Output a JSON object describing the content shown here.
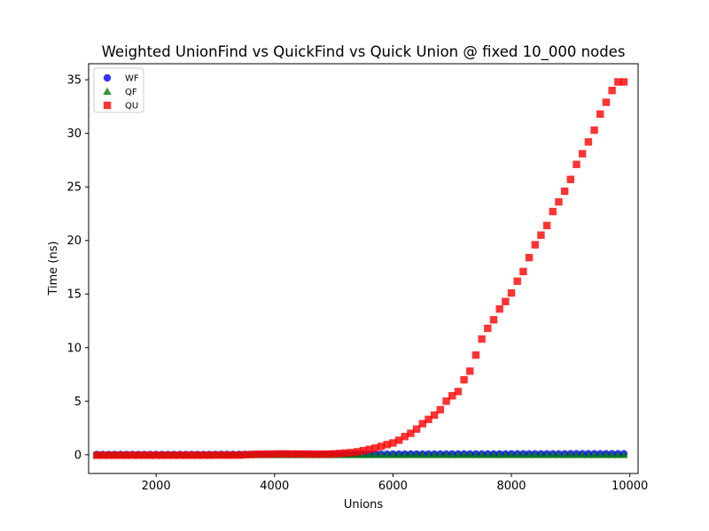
{
  "chart_data": {
    "type": "scatter",
    "title": "Weighted UnionFind vs QuickFind vs Quick Union @ fixed 10_000 nodes",
    "xlabel": "Unions",
    "ylabel": "Time (ns)",
    "xlim": [
      860,
      10140
    ],
    "ylim": [
      -1.75,
      36.5
    ],
    "xticks": [
      2000,
      4000,
      6000,
      8000,
      10000
    ],
    "yticks": [
      0,
      5,
      10,
      15,
      20,
      25,
      30,
      35
    ],
    "legend_position": "top-left",
    "grid": false,
    "series": [
      {
        "name": "WF",
        "marker": "circle",
        "color": "#0000ff",
        "x": [
          1000,
          1100,
          1200,
          1300,
          1400,
          1500,
          1600,
          1700,
          1800,
          1900,
          2000,
          2100,
          2200,
          2300,
          2400,
          2500,
          2600,
          2700,
          2800,
          2900,
          3000,
          3100,
          3200,
          3300,
          3400,
          3500,
          3600,
          3700,
          3800,
          3900,
          4000,
          4100,
          4200,
          4300,
          4400,
          4500,
          4600,
          4700,
          4800,
          4900,
          5000,
          5100,
          5200,
          5300,
          5400,
          5500,
          5600,
          5700,
          5800,
          5900,
          6000,
          6100,
          6200,
          6300,
          6400,
          6500,
          6600,
          6700,
          6800,
          6900,
          7000,
          7100,
          7200,
          7300,
          7400,
          7500,
          7600,
          7700,
          7800,
          7900,
          8000,
          8100,
          8200,
          8300,
          8400,
          8500,
          8600,
          8700,
          8800,
          8900,
          9000,
          9100,
          9200,
          9300,
          9400,
          9500,
          9600,
          9700,
          9800,
          9900
        ],
        "y": [
          0.02,
          0.02,
          0.02,
          0.02,
          0.02,
          0.02,
          0.02,
          0.02,
          0.02,
          0.02,
          0.02,
          0.02,
          0.02,
          0.02,
          0.02,
          0.02,
          0.02,
          0.02,
          0.02,
          0.02,
          0.03,
          0.03,
          0.03,
          0.03,
          0.03,
          0.03,
          0.03,
          0.03,
          0.03,
          0.03,
          0.04,
          0.04,
          0.04,
          0.04,
          0.04,
          0.04,
          0.04,
          0.04,
          0.04,
          0.04,
          0.05,
          0.05,
          0.05,
          0.05,
          0.05,
          0.05,
          0.05,
          0.05,
          0.05,
          0.05,
          0.06,
          0.06,
          0.06,
          0.06,
          0.06,
          0.06,
          0.06,
          0.06,
          0.06,
          0.06,
          0.07,
          0.07,
          0.07,
          0.07,
          0.07,
          0.07,
          0.07,
          0.07,
          0.07,
          0.07,
          0.08,
          0.08,
          0.08,
          0.08,
          0.08,
          0.08,
          0.08,
          0.08,
          0.08,
          0.08,
          0.09,
          0.09,
          0.09,
          0.09,
          0.09,
          0.09,
          0.09,
          0.09,
          0.09,
          0.09
        ]
      },
      {
        "name": "QF",
        "marker": "triangle",
        "color": "#008000",
        "x": [
          1000,
          1100,
          1200,
          1300,
          1400,
          1500,
          1600,
          1700,
          1800,
          1900,
          2000,
          2100,
          2200,
          2300,
          2400,
          2500,
          2600,
          2700,
          2800,
          2900,
          3000,
          3100,
          3200,
          3300,
          3400,
          3500,
          3600,
          3700,
          3800,
          3900,
          4000,
          4100,
          4200,
          4300,
          4400,
          4500,
          4600,
          4700,
          4800,
          4900,
          5000,
          5100,
          5200,
          5300,
          5400,
          5500,
          5600,
          5700,
          5800,
          5900,
          6000,
          6100,
          6200,
          6300,
          6400,
          6500,
          6600,
          6700,
          6800,
          6900,
          7000,
          7100,
          7200,
          7300,
          7400,
          7500,
          7600,
          7700,
          7800,
          7900,
          8000,
          8100,
          8200,
          8300,
          8400,
          8500,
          8600,
          8700,
          8800,
          8900,
          9000,
          9100,
          9200,
          9300,
          9400,
          9500,
          9600,
          9700,
          9800,
          9900
        ],
        "y": [
          -0.02,
          -0.02,
          -0.02,
          -0.02,
          -0.02,
          -0.02,
          -0.02,
          -0.02,
          -0.02,
          -0.02,
          -0.02,
          -0.02,
          -0.02,
          -0.02,
          -0.02,
          -0.02,
          -0.02,
          -0.02,
          -0.02,
          -0.02,
          -0.02,
          -0.02,
          -0.02,
          -0.02,
          -0.02,
          -0.02,
          -0.02,
          -0.02,
          -0.02,
          -0.02,
          -0.02,
          -0.02,
          -0.02,
          -0.02,
          -0.02,
          -0.02,
          -0.02,
          -0.02,
          -0.02,
          -0.02,
          -0.02,
          -0.02,
          -0.02,
          -0.02,
          -0.02,
          -0.02,
          -0.02,
          -0.02,
          -0.02,
          -0.02,
          -0.02,
          -0.02,
          -0.02,
          -0.02,
          -0.02,
          -0.02,
          -0.02,
          -0.02,
          -0.02,
          -0.02,
          -0.02,
          -0.02,
          -0.02,
          -0.02,
          -0.02,
          -0.02,
          -0.02,
          -0.02,
          -0.02,
          -0.02,
          -0.02,
          -0.02,
          -0.02,
          -0.02,
          -0.02,
          -0.02,
          -0.02,
          -0.02,
          -0.02,
          -0.02,
          -0.02,
          -0.02,
          -0.02,
          -0.02,
          -0.02,
          -0.02,
          -0.02,
          -0.02,
          -0.02,
          -0.02
        ]
      },
      {
        "name": "QU",
        "marker": "square",
        "color": "#ff0000",
        "x": [
          1000,
          1100,
          1200,
          1300,
          1400,
          1500,
          1600,
          1700,
          1800,
          1900,
          2000,
          2100,
          2200,
          2300,
          2400,
          2500,
          2600,
          2700,
          2800,
          2900,
          3000,
          3100,
          3200,
          3300,
          3400,
          3500,
          3600,
          3700,
          3800,
          3900,
          4000,
          4100,
          4200,
          4300,
          4400,
          4500,
          4600,
          4700,
          4800,
          4900,
          5000,
          5100,
          5200,
          5300,
          5400,
          5500,
          5600,
          5700,
          5800,
          5900,
          6000,
          6100,
          6200,
          6300,
          6400,
          6500,
          6600,
          6700,
          6800,
          6900,
          7000,
          7100,
          7200,
          7300,
          7400,
          7500,
          7600,
          7700,
          7800,
          7900,
          8000,
          8100,
          8200,
          8300,
          8400,
          8500,
          8600,
          8700,
          8800,
          8900,
          9000,
          9100,
          9200,
          9300,
          9400,
          9500,
          9600,
          9700,
          9800,
          9900
        ],
        "y": [
          -0.05,
          -0.05,
          -0.05,
          -0.05,
          -0.05,
          -0.05,
          -0.05,
          -0.05,
          -0.05,
          -0.05,
          -0.05,
          -0.05,
          -0.05,
          -0.05,
          -0.05,
          -0.05,
          -0.05,
          -0.05,
          -0.05,
          -0.05,
          -0.04,
          -0.04,
          -0.04,
          -0.04,
          -0.04,
          0.0,
          0.02,
          0.04,
          0.05,
          0.06,
          0.07,
          0.08,
          0.08,
          0.07,
          0.07,
          0.06,
          0.06,
          0.05,
          0.05,
          0.06,
          0.08,
          0.12,
          0.16,
          0.2,
          0.28,
          0.38,
          0.5,
          0.62,
          0.78,
          0.95,
          1.1,
          1.35,
          1.7,
          2.0,
          2.4,
          2.9,
          3.3,
          3.7,
          4.2,
          5.0,
          5.5,
          5.9,
          7.0,
          7.8,
          9.3,
          10.8,
          11.8,
          12.6,
          13.6,
          14.3,
          15.1,
          16.2,
          17.1,
          18.4,
          19.6,
          20.5,
          21.4,
          22.7,
          23.6,
          24.6,
          25.7,
          27.1,
          28.1,
          29.2,
          30.3,
          31.8,
          32.9,
          34.0,
          34.8,
          34.8
        ]
      }
    ]
  }
}
